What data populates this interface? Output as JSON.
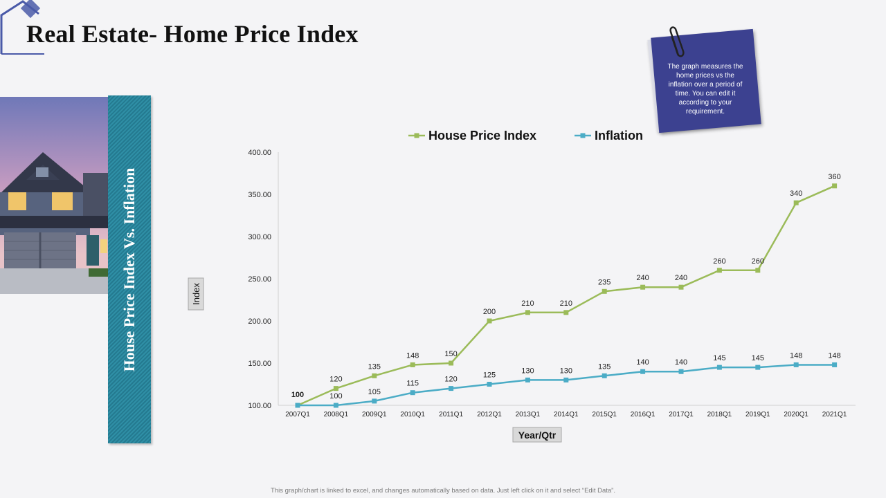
{
  "slide": {
    "title": "Real Estate- Home Price Index",
    "side_label": "House Price Index Vs. Inflation",
    "note": "The graph measures the home prices vs the inflation over a period of time. You can edit it according to your requirement.",
    "footer": "This graph/chart is linked to excel, and changes automatically based on data. Just left click on it and select “Edit Data”."
  },
  "colors": {
    "house_price_index": "#9bbb59",
    "inflation": "#4bacc6",
    "banner": "#2f8fa6",
    "note": "#3c4190"
  },
  "chart_data": {
    "type": "line",
    "xlabel": "Year/Qtr",
    "ylabel": "Index",
    "ylim": [
      100,
      400
    ],
    "yticks": [
      "100.00",
      "150.00",
      "200.00",
      "250.00",
      "300.00",
      "350.00",
      "400.00"
    ],
    "grid": false,
    "legend_position": "top",
    "categories": [
      "2007Q1",
      "2008Q1",
      "2009Q1",
      "2010Q1",
      "2011Q1",
      "2012Q1",
      "2013Q1",
      "2014Q1",
      "2015Q1",
      "2016Q1",
      "2017Q1",
      "2018Q1",
      "2019Q1",
      "2020Q1",
      "2021Q1"
    ],
    "series": [
      {
        "name": "House Price Index",
        "color": "#9bbb59",
        "values": [
          100,
          120,
          135,
          148,
          150,
          200,
          210,
          210,
          235,
          240,
          240,
          260,
          260,
          340,
          360
        ]
      },
      {
        "name": "Inflation",
        "color": "#4bacc6",
        "values": [
          100,
          100,
          105,
          115,
          120,
          125,
          130,
          130,
          135,
          140,
          140,
          145,
          145,
          148,
          148
        ]
      }
    ]
  }
}
